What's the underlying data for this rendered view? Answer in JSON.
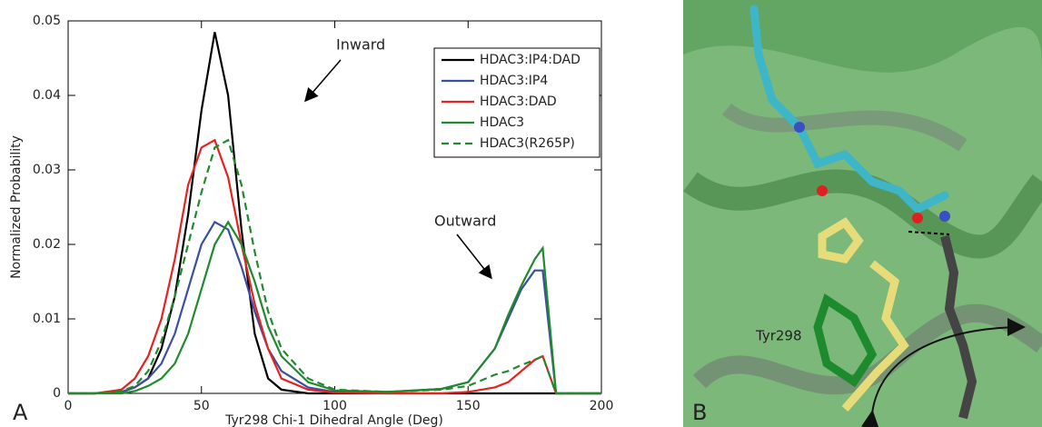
{
  "chart_data": {
    "type": "line",
    "panel_label": "A",
    "xlabel": "Tyr298 Chi-1 Dihedral Angle (Deg)",
    "ylabel": "Normalized Probability",
    "xlim": [
      0,
      200
    ],
    "ylim": [
      0,
      0.05
    ],
    "xticks": [
      0,
      50,
      100,
      150,
      200
    ],
    "yticks": [
      0,
      0.01,
      0.02,
      0.03,
      0.04,
      0.05
    ],
    "legend": "upper right",
    "annotations": [
      "Inward",
      "Outward"
    ],
    "x": [
      0,
      10,
      20,
      25,
      30,
      35,
      40,
      45,
      50,
      55,
      60,
      65,
      70,
      75,
      80,
      90,
      100,
      120,
      140,
      150,
      160,
      165,
      170,
      175,
      178,
      183,
      190,
      200
    ],
    "series": [
      {
        "name": "HDAC3:IP4:DAD",
        "color": "#000000",
        "dash": false,
        "values": [
          0,
          0,
          0.0002,
          0.0008,
          0.002,
          0.006,
          0.013,
          0.024,
          0.038,
          0.0485,
          0.04,
          0.022,
          0.008,
          0.002,
          0.0005,
          0,
          0,
          0,
          0,
          0,
          0,
          0,
          0,
          0,
          0,
          0,
          0,
          0
        ]
      },
      {
        "name": "HDAC3:IP4",
        "color": "#3a4fa0",
        "dash": false,
        "values": [
          0,
          0,
          0.0002,
          0.0008,
          0.002,
          0.004,
          0.008,
          0.014,
          0.02,
          0.023,
          0.022,
          0.017,
          0.011,
          0.006,
          0.003,
          0.0008,
          0.0002,
          0.0002,
          0.0006,
          0.0015,
          0.006,
          0.01,
          0.014,
          0.0165,
          0.0165,
          0,
          0,
          0
        ]
      },
      {
        "name": "HDAC3:DAD",
        "color": "#e8201f",
        "dash": false,
        "values": [
          0,
          0,
          0.0005,
          0.002,
          0.005,
          0.01,
          0.018,
          0.028,
          0.033,
          0.034,
          0.029,
          0.02,
          0.012,
          0.006,
          0.002,
          0.0005,
          0.0001,
          0,
          0,
          0.0002,
          0.0008,
          0.0015,
          0.003,
          0.0045,
          0.005,
          0,
          0,
          0
        ]
      },
      {
        "name": "HDAC3",
        "color": "#1f8a2e",
        "dash": false,
        "values": [
          0,
          0,
          0,
          0.0003,
          0.001,
          0.002,
          0.004,
          0.008,
          0.014,
          0.02,
          0.023,
          0.02,
          0.015,
          0.009,
          0.005,
          0.0015,
          0.0004,
          0.0002,
          0.0006,
          0.0015,
          0.006,
          0.0105,
          0.0145,
          0.018,
          0.0195,
          0,
          0,
          0
        ]
      },
      {
        "name": "HDAC3(R265P)",
        "color": "#1f8a2e",
        "dash": true,
        "values": [
          0,
          0,
          0.0003,
          0.001,
          0.003,
          0.007,
          0.013,
          0.02,
          0.027,
          0.033,
          0.034,
          0.028,
          0.019,
          0.011,
          0.006,
          0.002,
          0.0005,
          0.0002,
          0.0005,
          0.001,
          0.0025,
          0.003,
          0.0038,
          0.0045,
          0.005,
          0,
          0,
          0
        ]
      }
    ]
  },
  "panel_b": {
    "label": "B",
    "annotation": "Tyr298"
  }
}
